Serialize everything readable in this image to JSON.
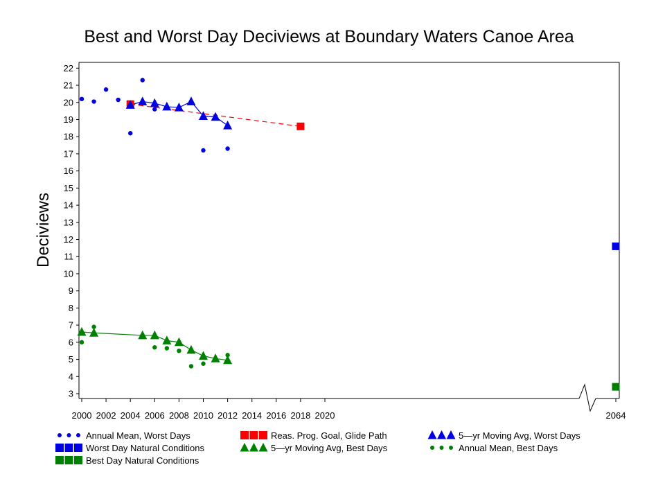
{
  "chart_data": {
    "type": "line",
    "title": "Best and Worst Day Deciviews at Boundary Waters Canoe Area",
    "xlabel": "",
    "ylabel": "Deciviews",
    "ylim": [
      3,
      22
    ],
    "x_ticks": [
      "2000",
      "2002",
      "2004",
      "2006",
      "2008",
      "2010",
      "2012",
      "2014",
      "2016",
      "2018",
      "2020",
      "2064"
    ],
    "y_ticks": [
      "3",
      "4",
      "5",
      "6",
      "7",
      "8",
      "9",
      "10",
      "11",
      "12",
      "13",
      "14",
      "15",
      "16",
      "17",
      "18",
      "19",
      "20",
      "21",
      "22"
    ],
    "axis_break": "between 2020 and 2064",
    "grid": false,
    "legend_position": "bottom",
    "colors": {
      "worst": "#0000e0",
      "best": "#008000",
      "glide": "#ff0000"
    },
    "series": [
      {
        "name": "Annual Mean, Worst Days",
        "marker": "dot",
        "color": "#0000e0",
        "x": [
          2000,
          2001,
          2002,
          2003,
          2004,
          2005,
          2006,
          2010,
          2012
        ],
        "y": [
          20.2,
          20.05,
          20.75,
          20.15,
          18.2,
          21.3,
          19.6,
          17.2,
          17.3
        ]
      },
      {
        "name": "Worst Day Natural Conditions",
        "marker": "square",
        "color": "#0000e0",
        "x": [
          2064
        ],
        "y": [
          11.6
        ]
      },
      {
        "name": "Best Day Natural Conditions",
        "marker": "square",
        "color": "#008000",
        "x": [
          2064
        ],
        "y": [
          3.4
        ]
      },
      {
        "name": "Reas. Prog. Goal, Glide Path",
        "marker": "square",
        "color": "#ff0000",
        "line": "dashed",
        "x": [
          2004,
          2018
        ],
        "y": [
          19.9,
          18.6
        ]
      },
      {
        "name": "5—yr Moving Avg, Best Days",
        "marker": "triangle",
        "color": "#008000",
        "line": "solid",
        "x": [
          2000,
          2001,
          2005,
          2006,
          2007,
          2008,
          2009,
          2010,
          2011,
          2012
        ],
        "y": [
          6.6,
          6.55,
          6.4,
          6.4,
          6.1,
          6.0,
          5.55,
          5.2,
          5.05,
          4.95
        ]
      },
      {
        "name": "5—yr Moving Avg, Worst Days",
        "marker": "triangle",
        "color": "#0000e0",
        "line": "solid",
        "x": [
          2004,
          2005,
          2006,
          2007,
          2008,
          2009,
          2010,
          2011,
          2012
        ],
        "y": [
          19.85,
          20.05,
          19.95,
          19.75,
          19.7,
          20.05,
          19.2,
          19.15,
          18.65
        ]
      },
      {
        "name": "Annual Mean, Best Days",
        "marker": "dot",
        "color": "#008000",
        "x": [
          2000,
          2001,
          2006,
          2007,
          2008,
          2009,
          2010,
          2012
        ],
        "y": [
          6.0,
          6.9,
          5.7,
          5.65,
          5.5,
          4.6,
          4.75,
          5.25
        ]
      }
    ]
  }
}
